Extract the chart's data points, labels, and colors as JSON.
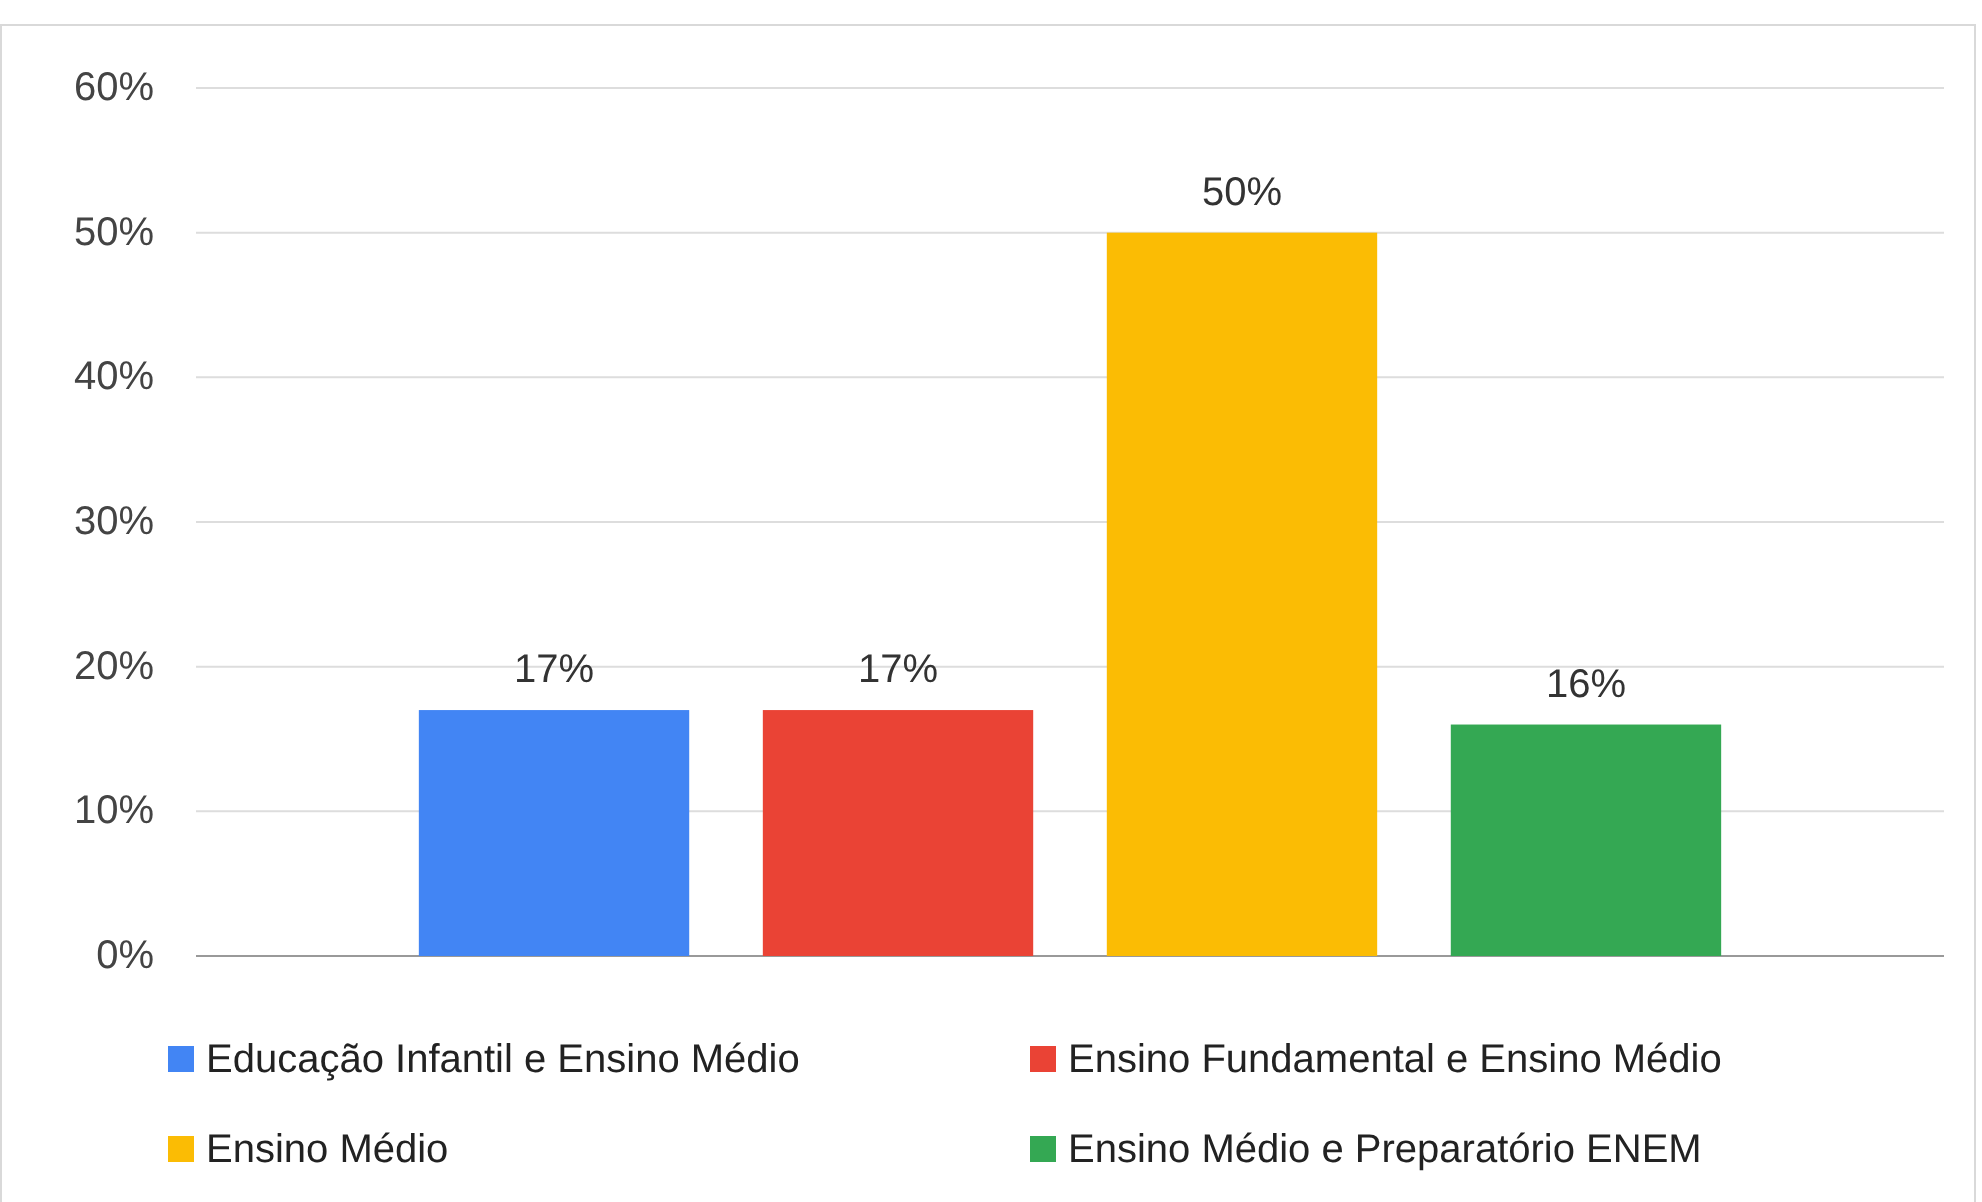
{
  "chart_data": {
    "type": "bar",
    "categories": [
      null
    ],
    "series": [
      {
        "name": "Educação Infantil e Ensino Médio",
        "color": "#4285f4",
        "values": [
          17
        ],
        "value_labels": [
          "17%"
        ]
      },
      {
        "name": "Ensino Fundamental e Ensino Médio",
        "color": "#ea4335",
        "values": [
          17
        ],
        "value_labels": [
          "17%"
        ]
      },
      {
        "name": "Ensino Médio",
        "color": "#fbbc04",
        "values": [
          50
        ],
        "value_labels": [
          "50%"
        ]
      },
      {
        "name": "Ensino Médio e Preparatório ENEM",
        "color": "#34a853",
        "values": [
          16
        ],
        "value_labels": [
          "16%"
        ]
      }
    ],
    "ylim": [
      0,
      60
    ],
    "yticks": [
      {
        "value": 0,
        "label": "0%"
      },
      {
        "value": 10,
        "label": "10%"
      },
      {
        "value": 20,
        "label": "20%"
      },
      {
        "value": 30,
        "label": "30%"
      },
      {
        "value": 40,
        "label": "40%"
      },
      {
        "value": 50,
        "label": "50%"
      },
      {
        "value": 60,
        "label": "60%"
      }
    ],
    "grid": "y",
    "legend": "bottom"
  }
}
